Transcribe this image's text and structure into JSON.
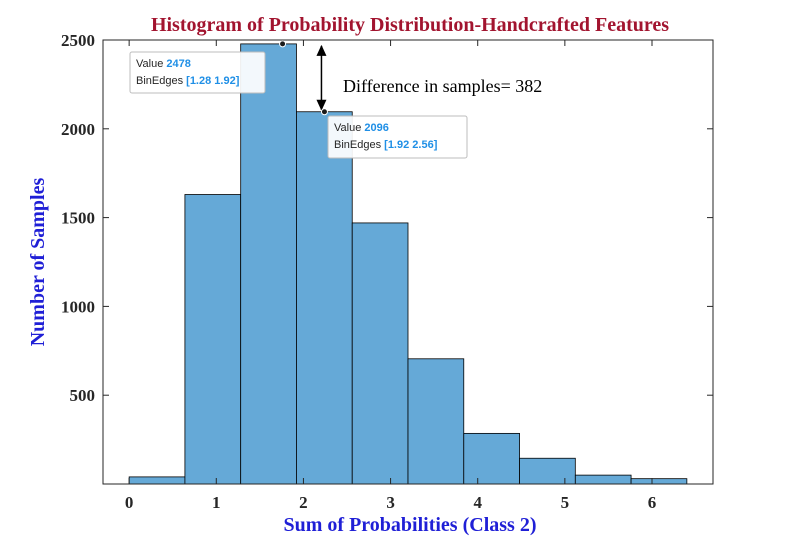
{
  "chart_data": {
    "type": "bar",
    "title": "Histogram of Probability Distribution-Handcrafted Features",
    "xlabel": "Sum of Probabilities (Class 2)",
    "ylabel": "Number of Samples",
    "xlim": [
      -0.3,
      6.7
    ],
    "ylim": [
      0,
      2500
    ],
    "xticks": [
      0,
      1,
      2,
      3,
      4,
      5,
      6
    ],
    "yticks": [
      500,
      1000,
      1500,
      2000,
      2500
    ],
    "bin_edges": [
      0,
      0.64,
      1.28,
      1.92,
      2.56,
      3.2,
      3.84,
      4.48,
      5.12,
      5.76,
      6.4
    ],
    "values": [
      40,
      1630,
      2478,
      2096,
      1470,
      705,
      285,
      145,
      50,
      30
    ],
    "bar_color": "#65a9d7",
    "grid": false,
    "annotations": [
      {
        "text": "Difference in samples= 382"
      }
    ],
    "datatips": [
      {
        "value_label": "Value",
        "value": "2478",
        "edges_label": "BinEdges",
        "edges": "[1.28 1.92]",
        "bin_index": 2
      },
      {
        "value_label": "Value",
        "value": "2096",
        "edges_label": "BinEdges",
        "edges": "[1.92 2.56]",
        "bin_index": 3
      }
    ]
  }
}
